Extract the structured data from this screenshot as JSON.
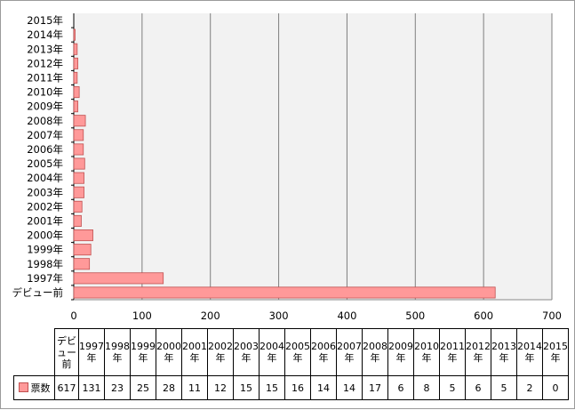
{
  "chart_data": {
    "type": "bar",
    "orientation": "horizontal",
    "categories": [
      "デビュー前",
      "1997年",
      "1998年",
      "1999年",
      "2000年",
      "2001年",
      "2002年",
      "2003年",
      "2004年",
      "2005年",
      "2006年",
      "2007年",
      "2008年",
      "2009年",
      "2010年",
      "2011年",
      "2012年",
      "2013年",
      "2014年",
      "2015年"
    ],
    "table_headers": [
      "デビュー前",
      "1997年",
      "1998年",
      "1999年",
      "2000年",
      "2001年",
      "2002年",
      "2003年",
      "2004年",
      "2005年",
      "2006年",
      "2007年",
      "2008年",
      "2009年",
      "2010年",
      "2011年",
      "2012年",
      "2013年",
      "2014年",
      "2015年"
    ],
    "series": [
      {
        "name": "票数",
        "values": [
          617,
          131,
          23,
          25,
          28,
          11,
          12,
          15,
          15,
          16,
          14,
          14,
          17,
          6,
          8,
          5,
          6,
          5,
          2,
          0
        ]
      }
    ],
    "xlim": [
      0,
      700
    ],
    "xticks": [
      "0",
      "100",
      "200",
      "300",
      "400",
      "500",
      "600",
      "700"
    ],
    "grid": true,
    "legend": "in data table",
    "colors": {
      "bar_fill": "#ff9999",
      "bar_stroke": "#c05050",
      "plot_bg": "#f2f2f2",
      "grid": "#7f7f7f"
    }
  }
}
